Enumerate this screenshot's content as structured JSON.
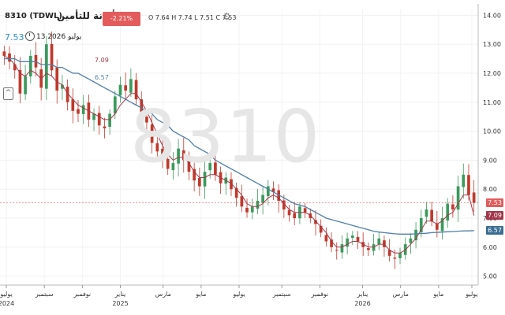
{
  "header": {
    "symbol": "8310 (TDWL)",
    "name": "أمانة للتأمين",
    "change": "-2.21%(-0.17)",
    "ohlc": "O 7.64  H 7.74  L 7.51  C 7.53",
    "date": "13 يوليو 2026",
    "last_price": "7.53",
    "indicator1_value": "7.09",
    "indicator2_value": "6.57",
    "watermark": "8310",
    "gear_icon": "gear-icon",
    "collapse_icon": "chevron-down-icon"
  },
  "colors": {
    "up": "#3a9a5c",
    "down": "#c0392b",
    "ma_short": "#a3364a",
    "ma_long": "#4e7fa6",
    "last_price_tag": "#e35b5b",
    "ma_short_tag": "#a3364a",
    "ma_long_tag": "#3b6e93"
  },
  "chart_data": {
    "type": "candlestick",
    "ylim": [
      4.8,
      14.2
    ],
    "yticks": [
      "14.00",
      "13.00",
      "12.00",
      "11.00",
      "10.00",
      "9.00",
      "8.00",
      "7.00",
      "6.00",
      "5.00"
    ],
    "ytick_values": [
      14,
      13,
      12,
      11,
      10,
      9,
      8,
      7,
      6,
      5
    ],
    "xlim": [
      0,
      100
    ],
    "xticks": [
      {
        "label": "يوليو",
        "year": "2024",
        "pos": 1
      },
      {
        "label": "سبتمبر",
        "year": "",
        "pos": 9
      },
      {
        "label": "نوفمبر",
        "year": "",
        "pos": 17
      },
      {
        "label": "يناير",
        "year": "2025",
        "pos": 25
      },
      {
        "label": "مارس",
        "year": "",
        "pos": 34
      },
      {
        "label": "مايو",
        "year": "",
        "pos": 42
      },
      {
        "label": "يوليو",
        "year": "",
        "pos": 50
      },
      {
        "label": "سبتمبر",
        "year": "",
        "pos": 59
      },
      {
        "label": "نوفمبر",
        "year": "",
        "pos": 67
      },
      {
        "label": "يناير",
        "year": "2026",
        "pos": 76
      },
      {
        "label": "مارس",
        "year": "",
        "pos": 84
      },
      {
        "label": "مايو",
        "year": "",
        "pos": 92
      },
      {
        "label": "يوليو",
        "year": "",
        "pos": 99
      }
    ],
    "close": [
      12.6,
      12.4,
      12.1,
      11.3,
      11.9,
      12.6,
      12.2,
      11.5,
      13.0,
      12.1,
      11.4,
      11.6,
      11.0,
      10.7,
      10.6,
      10.9,
      10.4,
      10.6,
      10.2,
      10.1,
      10.6,
      11.2,
      11.6,
      11.4,
      11.8,
      11.1,
      10.6,
      10.3,
      9.6,
      9.3,
      9.0,
      8.7,
      8.9,
      9.4,
      9.0,
      8.6,
      8.3,
      8.1,
      8.6,
      8.9,
      8.5,
      8.2,
      8.4,
      8.0,
      7.7,
      7.4,
      7.2,
      7.4,
      7.6,
      7.8,
      8.1,
      7.9,
      7.6,
      7.3,
      7.1,
      7.0,
      7.4,
      7.2,
      7.0,
      6.8,
      6.5,
      6.2,
      6.0,
      5.9,
      6.1,
      6.3,
      6.4,
      6.2,
      6.0,
      5.9,
      6.1,
      6.3,
      6.0,
      5.7,
      5.6,
      5.8,
      6.1,
      6.3,
      6.6,
      7.0,
      7.3,
      6.9,
      6.6,
      7.0,
      7.5,
      7.3,
      8.1,
      8.5,
      7.8,
      7.53
    ],
    "ma_short": [
      12.6,
      12.5,
      12.3,
      12.0,
      11.9,
      12.1,
      12.0,
      11.8,
      12.0,
      11.9,
      11.7,
      11.6,
      11.3,
      11.1,
      10.9,
      10.8,
      10.7,
      10.6,
      10.5,
      10.4,
      10.4,
      10.6,
      10.9,
      11.1,
      11.3,
      11.3,
      11.0,
      10.7,
      10.3,
      9.9,
      9.5,
      9.2,
      9.0,
      9.1,
      9.1,
      8.9,
      8.6,
      8.4,
      8.4,
      8.5,
      8.5,
      8.4,
      8.3,
      8.2,
      8.0,
      7.8,
      7.5,
      7.4,
      7.4,
      7.5,
      7.7,
      7.8,
      7.7,
      7.5,
      7.3,
      7.2,
      7.2,
      7.2,
      7.1,
      6.9,
      6.7,
      6.5,
      6.2,
      6.0,
      6.0,
      6.1,
      6.2,
      6.2,
      6.1,
      6.0,
      6.0,
      6.1,
      6.1,
      5.9,
      5.8,
      5.8,
      5.9,
      6.1,
      6.3,
      6.6,
      6.9,
      6.9,
      6.8,
      6.9,
      7.1,
      7.2,
      7.5,
      7.8,
      7.8,
      7.09
    ],
    "ma_long": [
      12.5,
      12.5,
      12.5,
      12.4,
      12.4,
      12.4,
      12.4,
      12.3,
      12.3,
      12.3,
      12.2,
      12.2,
      12.1,
      12.0,
      12.0,
      11.9,
      11.8,
      11.7,
      11.6,
      11.5,
      11.4,
      11.3,
      11.2,
      11.1,
      11.0,
      10.9,
      10.8,
      10.7,
      10.6,
      10.4,
      10.3,
      10.2,
      10.0,
      9.9,
      9.8,
      9.7,
      9.5,
      9.4,
      9.3,
      9.2,
      9.0,
      8.9,
      8.8,
      8.7,
      8.6,
      8.5,
      8.4,
      8.3,
      8.2,
      8.1,
      8.0,
      7.9,
      7.8,
      7.7,
      7.6,
      7.5,
      7.45,
      7.4,
      7.3,
      7.2,
      7.1,
      7.0,
      6.95,
      6.9,
      6.85,
      6.8,
      6.75,
      6.7,
      6.65,
      6.6,
      6.55,
      6.52,
      6.5,
      6.48,
      6.46,
      6.45,
      6.45,
      6.45,
      6.46,
      6.47,
      6.48,
      6.5,
      6.51,
      6.52,
      6.53,
      6.54,
      6.55,
      6.56,
      6.56,
      6.57
    ]
  }
}
